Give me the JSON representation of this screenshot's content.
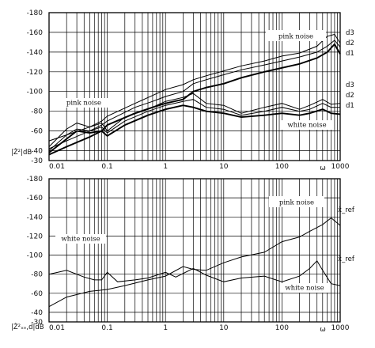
{
  "chart_data": [
    {
      "type": "line",
      "ylabel": "|Ż²|dB",
      "xlabel": "ω",
      "xscale": "log",
      "xlim": [
        0.01,
        1000
      ],
      "ylim": [
        -30,
        -180
      ],
      "yticks": [
        "-180",
        "-160",
        "-140",
        "-120",
        "-100",
        "-80",
        "-60",
        "-40",
        "-30"
      ],
      "xtick_labels": [
        "0.01",
        "0.1",
        "1",
        "10",
        "100",
        "1000"
      ],
      "grid": true,
      "annotations": [
        {
          "text": "pink noise",
          "x": 12,
          "y": -168
        },
        {
          "text": "pink noise",
          "x": 0.025,
          "y": -96
        },
        {
          "text": "white noise",
          "x": 40,
          "y": -58
        }
      ],
      "series": [
        {
          "name": "d3",
          "group": "pink noise",
          "x": [
            0.01,
            0.02,
            0.05,
            0.08,
            0.1,
            0.3,
            0.6,
            1,
            2,
            3,
            5,
            10,
            20,
            50,
            100,
            200,
            400,
            600,
            800,
            1000
          ],
          "y": [
            -50,
            -56,
            -64,
            -70,
            -75,
            -88,
            -96,
            -102,
            -107,
            -112,
            -116,
            -121,
            -126,
            -131,
            -136,
            -139,
            -146,
            -156,
            -158,
            -149
          ]
        },
        {
          "name": "d2",
          "group": "pink noise",
          "x": [
            0.01,
            0.02,
            0.05,
            0.08,
            0.1,
            0.3,
            0.6,
            1,
            2,
            3,
            5,
            10,
            20,
            50,
            100,
            200,
            400,
            600,
            800,
            1000
          ],
          "y": [
            -42,
            -50,
            -60,
            -66,
            -70,
            -84,
            -90,
            -95,
            -100,
            -108,
            -112,
            -117,
            -122,
            -127,
            -131,
            -135,
            -140,
            -146,
            -152,
            -145
          ]
        },
        {
          "name": "d1",
          "group": "pink noise",
          "x": [
            0.01,
            0.02,
            0.05,
            0.08,
            0.1,
            0.3,
            0.6,
            1,
            2,
            3,
            5,
            10,
            20,
            50,
            100,
            200,
            400,
            600,
            800,
            1000
          ],
          "y": [
            -36,
            -44,
            -54,
            -60,
            -66,
            -78,
            -84,
            -88,
            -92,
            -100,
            -104,
            -108,
            -114,
            -120,
            -124,
            -128,
            -134,
            -140,
            -148,
            -138
          ]
        },
        {
          "name": "d3",
          "group": "white noise",
          "x": [
            0.01,
            0.02,
            0.03,
            0.05,
            0.08,
            0.1,
            0.2,
            0.5,
            1,
            2,
            3,
            5,
            10,
            20,
            50,
            100,
            200,
            300,
            500,
            700,
            1000
          ],
          "y": [
            -44,
            -62,
            -68,
            -64,
            -68,
            -60,
            -74,
            -82,
            -90,
            -94,
            -98,
            -88,
            -86,
            -78,
            -84,
            -88,
            -82,
            -86,
            -92,
            -87,
            -88
          ]
        },
        {
          "name": "d2",
          "group": "white noise",
          "x": [
            0.01,
            0.02,
            0.03,
            0.05,
            0.08,
            0.1,
            0.2,
            0.5,
            1,
            2,
            3,
            5,
            10,
            20,
            50,
            100,
            200,
            300,
            500,
            700,
            1000
          ],
          "y": [
            -40,
            -56,
            -62,
            -60,
            -64,
            -58,
            -70,
            -80,
            -86,
            -90,
            -92,
            -84,
            -82,
            -76,
            -80,
            -84,
            -80,
            -82,
            -88,
            -84,
            -84
          ]
        },
        {
          "name": "d1",
          "group": "white noise",
          "x": [
            0.01,
            0.02,
            0.03,
            0.05,
            0.08,
            0.1,
            0.2,
            0.5,
            1,
            2,
            3,
            5,
            10,
            20,
            50,
            100,
            200,
            300,
            500,
            700,
            1000
          ],
          "y": [
            -38,
            -52,
            -60,
            -58,
            -60,
            -55,
            -66,
            -76,
            -82,
            -86,
            -84,
            -80,
            -78,
            -74,
            -76,
            -78,
            -76,
            -78,
            -82,
            -78,
            -77
          ]
        }
      ]
    },
    {
      "type": "line",
      "ylabel": "|Ż²ₓₑ,d|dB",
      "xlabel": "ω",
      "xscale": "log",
      "xlim": [
        0.01,
        1000
      ],
      "ylim": [
        -30,
        -180
      ],
      "yticks": [
        "-180",
        "-160",
        "-140",
        "-120",
        "-100",
        "-80",
        "-60",
        "-40",
        "-30"
      ],
      "xtick_labels": [
        "0.01",
        "0.1",
        "1",
        "10",
        "100",
        "1000"
      ],
      "grid": true,
      "annotations": [
        {
          "text": "pink noise",
          "x": 25,
          "y": -140
        },
        {
          "text": "white noise",
          "x": 0.025,
          "y": -98
        },
        {
          "text": "white noise",
          "x": 40,
          "y": -54
        }
      ],
      "series": [
        {
          "name": "x̂_ref",
          "group": "pink noise",
          "x": [
            0.01,
            0.02,
            0.05,
            0.1,
            0.2,
            0.5,
            1,
            2,
            3,
            5,
            10,
            20,
            50,
            100,
            200,
            300,
            500,
            700,
            1000
          ],
          "y": [
            -46,
            -56,
            -62,
            -64,
            -68,
            -74,
            -78,
            -88,
            -85,
            -84,
            -92,
            -98,
            -103,
            -114,
            -119,
            -125,
            -132,
            -139,
            -131
          ]
        },
        {
          "name": "x̂_ref",
          "group": "white noise",
          "x": [
            0.01,
            0.02,
            0.04,
            0.06,
            0.08,
            0.1,
            0.15,
            0.3,
            0.5,
            1,
            1.5,
            3,
            5,
            10,
            20,
            50,
            100,
            200,
            300,
            400,
            500,
            700,
            1000
          ],
          "y": [
            -80,
            -84,
            -77,
            -74,
            -74,
            -82,
            -72,
            -74,
            -76,
            -82,
            -77,
            -86,
            -79,
            -72,
            -76,
            -78,
            -72,
            -78,
            -86,
            -94,
            -84,
            -70,
            -68
          ]
        }
      ]
    }
  ]
}
